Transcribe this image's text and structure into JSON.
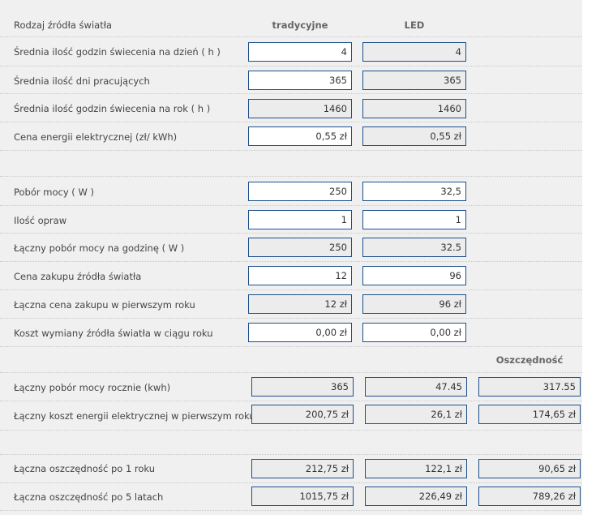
{
  "header": {
    "label": "Rodzaj źródła światła",
    "col_traditional": "tradycyjne",
    "col_led": "LED"
  },
  "rows_top": [
    {
      "label": "Średnia ilość godzin świecenia na dzień ( h )",
      "trad": "4",
      "led": "4"
    },
    {
      "label": "Średnia ilość dni pracujących",
      "trad": "365",
      "led": "365"
    },
    {
      "label": "Średnia ilość godzin świecenia na rok ( h )",
      "trad": "1460",
      "led": "1460"
    },
    {
      "label": "Cena energii elektrycznej (zł/ kWh)",
      "trad": "0,55 zł",
      "led": "0,55 zł"
    }
  ],
  "rows_mid": [
    {
      "label": "Pobór mocy ( W )",
      "trad": "250",
      "led": "32,5"
    },
    {
      "label": "Ilość opraw",
      "trad": "1",
      "led": "1"
    },
    {
      "label": "Łączny pobór mocy na godzinę ( W )",
      "trad": "250",
      "led": "32.5"
    },
    {
      "label": "Cena zakupu źródła światła",
      "trad": "12",
      "led": "96"
    },
    {
      "label": "Łączna cena zakupu w pierwszym roku",
      "trad": "12 zł",
      "led": "96 zł"
    },
    {
      "label": "Koszt wymiany źródła światła w ciągu roku",
      "trad": "0,00 zł",
      "led": "0,00 zł"
    }
  ],
  "savings_header": "Oszczędność",
  "rows_savings": [
    {
      "label": "Łączny pobór mocy rocznie (kwh)",
      "trad": "365",
      "led": "47.45",
      "save": "317.55"
    },
    {
      "label": "Łączny koszt energii elektrycznej w pierwszym roku",
      "trad": "200,75 zł",
      "led": "26,1 zł",
      "save": "174,65 zł"
    }
  ],
  "rows_totals": [
    {
      "label": "Łączna oszczędność po 1 roku",
      "trad": "212,75 zł",
      "led": "122,1 zł",
      "save": "90,65 zł"
    },
    {
      "label": "Łączna oszczędność po 5 latach",
      "trad": "1015,75 zł",
      "led": "226,49 zł",
      "save": "789,26 zł"
    }
  ]
}
